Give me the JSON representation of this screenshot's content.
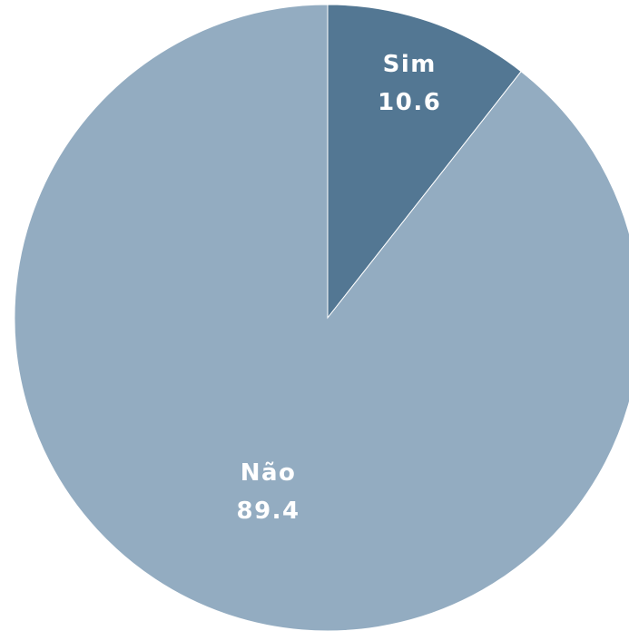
{
  "chart_data": {
    "type": "pie",
    "categories": [
      "Sim",
      "Não"
    ],
    "values": [
      10.6,
      89.4
    ],
    "value_labels": [
      "10.6",
      "89.4"
    ],
    "colors": [
      "#537793",
      "#93acc1"
    ],
    "start": "12 o'clock, clockwise",
    "legend": "none",
    "title": ""
  }
}
